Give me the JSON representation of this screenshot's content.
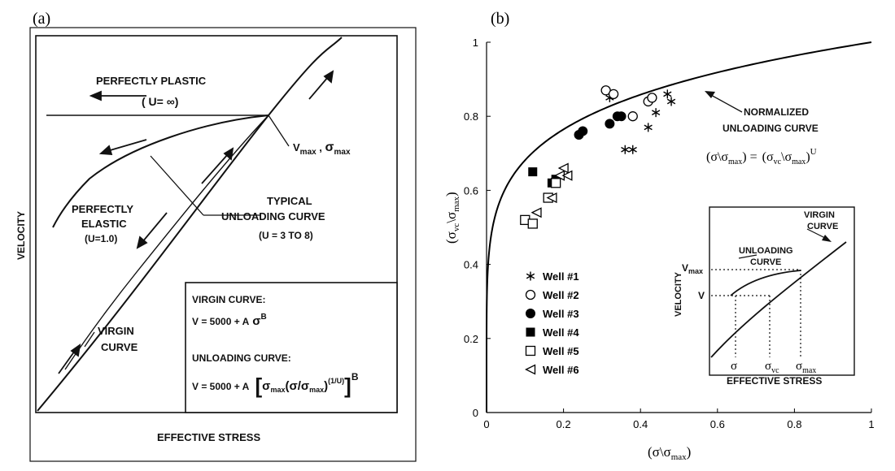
{
  "panel_a": {
    "label": "(a)",
    "perfectly_plastic": "PERFECTLY PLASTIC",
    "plastic_u": "( U=  ∞)",
    "vmax_label": "V",
    "vmax_sub": "max",
    "sigma_label": "σ",
    "sigma_sub": "max",
    "typical": "TYPICAL",
    "unloading_curve": "UNLOADING CURVE",
    "u_range": "(U = 3 TO 8)",
    "perfectly_elastic": "PERFECTLY",
    "elastic": "ELASTIC",
    "elastic_u": "(U=1.0)",
    "virgin": "VIRGIN",
    "curve": "CURVE",
    "ylabel": "VELOCITY",
    "xlabel": "EFFECTIVE STRESS",
    "eq_virgin_title": "VIRGIN CURVE:",
    "eq_virgin": "V = 5000 + A",
    "eq_virgin_sigma": "σ",
    "eq_virgin_exp": "B",
    "eq_unload_title": "UNLOADING CURVE:",
    "eq_unload_lhs": "V = 5000 + A",
    "eq_unload_inner": "σ",
    "eq_unload_inner_sub": "max",
    "eq_unload_frac": "(σ/σ",
    "eq_unload_frac_sub": "max",
    "eq_unload_frac_end": ")",
    "eq_unload_exp": "(1/U)",
    "eq_unload_outer_exp": "B"
  },
  "panel_b": {
    "label": "(b)",
    "annotation_line1": "NORMALIZED",
    "annotation_line2": "UNLOADING CURVE",
    "formula_lhs": "(σ\\σ",
    "formula_lhs_sub": "max",
    "formula_eq": ") =",
    "formula_rhs": "(σ",
    "formula_rhs_sub1": "vc",
    "formula_rhs_mid": "\\σ",
    "formula_rhs_sub2": "max",
    "formula_rhs_end": ")",
    "formula_exp": "U",
    "ylabel_main": "(σ",
    "ylabel_sub1": "vc",
    "ylabel_mid": "\\σ",
    "ylabel_sub2": "max",
    "ylabel_end": ")",
    "xlabel_main": "(σ\\σ",
    "xlabel_sub": "max",
    "xlabel_end": ")",
    "inset": {
      "virgin": "VIRGIN",
      "curve": "CURVE",
      "unloading": "UNLOADING",
      "unloading_curve": "CURVE",
      "ylabel": "VELOCITY",
      "vmax": "V",
      "vmax_sub": "max",
      "v": "V",
      "sigma": "σ",
      "sigma_vc": "σ",
      "sigma_vc_sub": "vc",
      "sigma_max": "σ",
      "sigma_max_sub": "max",
      "xlabel": "EFFECTIVE STRESS"
    }
  },
  "chart_data": {
    "type": "scatter",
    "x_ticks": [
      "0",
      "0.2",
      "0.4",
      "0.6",
      "0.8",
      "1"
    ],
    "y_ticks": [
      "0",
      "0.2",
      "0.4",
      "0.6",
      "0.8",
      "1"
    ],
    "xlim": [
      0,
      1
    ],
    "ylim": [
      0,
      1
    ],
    "curve_exponent_U": 6,
    "series": [
      {
        "name": "Well #1",
        "marker": "asterisk",
        "points": [
          [
            0.32,
            0.85
          ],
          [
            0.47,
            0.86
          ],
          [
            0.48,
            0.84
          ],
          [
            0.42,
            0.77
          ],
          [
            0.44,
            0.81
          ],
          [
            0.36,
            0.71
          ],
          [
            0.38,
            0.71
          ]
        ]
      },
      {
        "name": "Well #2",
        "marker": "open-circle",
        "points": [
          [
            0.31,
            0.87
          ],
          [
            0.33,
            0.86
          ],
          [
            0.38,
            0.8
          ],
          [
            0.42,
            0.84
          ],
          [
            0.43,
            0.85
          ]
        ]
      },
      {
        "name": "Well #3",
        "marker": "filled-circle",
        "points": [
          [
            0.24,
            0.75
          ],
          [
            0.25,
            0.76
          ],
          [
            0.32,
            0.78
          ],
          [
            0.34,
            0.8
          ],
          [
            0.35,
            0.8
          ]
        ]
      },
      {
        "name": "Well #4",
        "marker": "filled-square",
        "points": [
          [
            0.12,
            0.65
          ],
          [
            0.17,
            0.62
          ],
          [
            0.18,
            0.63
          ]
        ]
      },
      {
        "name": "Well #5",
        "marker": "open-square",
        "points": [
          [
            0.1,
            0.52
          ],
          [
            0.12,
            0.51
          ],
          [
            0.16,
            0.58
          ],
          [
            0.18,
            0.62
          ]
        ]
      },
      {
        "name": "Well #6",
        "marker": "open-triangle",
        "points": [
          [
            0.13,
            0.54
          ],
          [
            0.17,
            0.58
          ],
          [
            0.19,
            0.64
          ],
          [
            0.2,
            0.66
          ],
          [
            0.21,
            0.64
          ]
        ]
      }
    ]
  }
}
